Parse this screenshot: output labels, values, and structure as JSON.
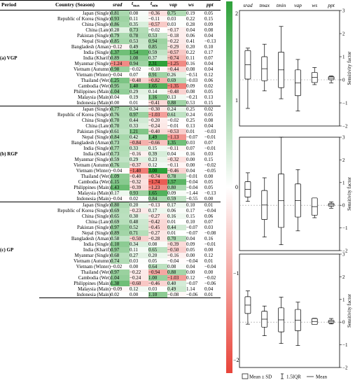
{
  "headers": {
    "period": "Period",
    "country": "Country (Season)",
    "cols": [
      {
        "main": "srad",
        "sub": ""
      },
      {
        "main": "t",
        "sub": "max"
      },
      {
        "main": "t",
        "sub": "min"
      },
      {
        "main": "vap",
        "sub": ""
      },
      {
        "main": "ws",
        "sub": ""
      },
      {
        "main": "ppt",
        "sub": ""
      }
    ]
  },
  "countries": [
    "Japan (Single)",
    "Republic of Korea (Single)",
    "China (Single)",
    "China (Late)",
    "Pakistan (Single)",
    "Nepal (Single)",
    "Bangladesh (Aman)",
    "India (Single)",
    "India (Kharif)",
    "Myanmar (Single)",
    "Vietnam (Autumn)",
    "Vietnam (Winter)",
    "Thailand (Wet)",
    "Cambodia (Wet)",
    "Philippines (Main)",
    "Malaysia (Main)",
    "Indonesia (Main)"
  ],
  "chart_data": [
    {
      "type": "heatmap",
      "columns": [
        "srad",
        "tmax",
        "tmin",
        "vap",
        "ws",
        "ppt"
      ],
      "color_scale": {
        "min": -2,
        "max": 2,
        "ticks": [
          2,
          1,
          0,
          -1,
          -2
        ],
        "low_color": "#e8443a",
        "mid_color": "#ffffff",
        "high_color": "#2ea13a"
      },
      "groups": [
        {
          "label": "(a) VGP",
          "values": [
            [
              "0.81",
              "0.08",
              "−0.36",
              "0.75",
              "0.19",
              "0.05"
            ],
            [
              "0.93",
              "0.11",
              "−0.11",
              "0.03",
              "0.22",
              "0.15"
            ],
            [
              "0.86",
              "0.35",
              "−0.57",
              "0.03",
              "0.28",
              "0.09"
            ],
            [
              "0.28",
              "0.73",
              "−0.02",
              "−0.17",
              "0.04",
              "0.08"
            ],
            [
              "0.79",
              "0.78",
              "0.53",
              "−0.18",
              "0.06",
              "0.04"
            ],
            [
              "0.85",
              "0.53",
              "0.94",
              "−0.22",
              "0.41",
              "−0.13"
            ],
            [
              "−0.12",
              "0.49",
              "0.85",
              "−0.29",
              "0.20",
              "0.10"
            ],
            [
              "1.37",
              "1.54",
              "0.59",
              "−0.57",
              "0.22",
              "0.17"
            ],
            [
              "0.89",
              "1.08",
              "0.37",
              "−0.74",
              "0.11",
              "0.07"
            ],
            [
              "−1.24",
              "0.94",
              "2.31",
              "−1.25",
              "0.16",
              "0.04"
            ],
            [
              "0.98",
              "−0.02",
              "−0.10",
              "−0.44",
              "0.08",
              "0.04"
            ],
            [
              "−0.04",
              "0.07",
              "0.91",
              "0.26",
              "−0.51",
              "0.12"
            ],
            [
              "1.25",
              "−0.48",
              "−0.82",
              "0.69",
              "−0.03",
              "0.06"
            ],
            [
              "0.95",
              "1.40",
              "1.65",
              "−1.35",
              "0.09",
              "0.02"
            ],
            [
              "1.04",
              "0.29",
              "0.14",
              "−0.48",
              "0.08",
              "0.05"
            ],
            [
              "0.04",
              "0.19",
              "1.16",
              "0.13",
              "−0.21",
              "0.13"
            ],
            [
              "0.00",
              "0.01",
              "−0.41",
              "0.88",
              "0.53",
              "0.15"
            ]
          ]
        },
        {
          "label": "(b) RGP",
          "values": [
            [
              "0.77",
              "0.34",
              "−0.30",
              "0.24",
              "0.25",
              "0.02"
            ],
            [
              "0.76",
              "0.97",
              "−1.03",
              "0.61",
              "0.24",
              "0.05"
            ],
            [
              "0.70",
              "0.44",
              "−0.20",
              "−0.02",
              "0.25",
              "0.08"
            ],
            [
              "0.70",
              "0.33",
              "−0.24",
              "−0.01",
              "0.13",
              "0.04"
            ],
            [
              "0.61",
              "1.21",
              "−0.40",
              "−0.53",
              "0.01",
              "−0.03"
            ],
            [
              "0.84",
              "0.42",
              "1.49",
              "−1.13",
              "−0.07",
              "−0.01"
            ],
            [
              "0.73",
              "−0.84",
              "−0.66",
              "1.35",
              "0.03",
              "0.07"
            ],
            [
              "0.77",
              "0.33",
              "0.15",
              "−0.11",
              "0.07",
              "−0.01"
            ],
            [
              "0.73",
              "−0.16",
              "0.39",
              "0.04",
              "0.16",
              "0.03"
            ],
            [
              "0.59",
              "0.29",
              "0.23",
              "−0.32",
              "0.00",
              "0.15"
            ],
            [
              "0.76",
              "−0.37",
              "0.12",
              "−0.11",
              "0.00",
              "−0.02"
            ],
            [
              "−0.04",
              "−1.40",
              "3.00",
              "−0.46",
              "0.04",
              "−0.05"
            ],
            [
              "1.09",
              "−0.40",
              "−0.74",
              "0.78",
              "−0.01",
              "0.00"
            ],
            [
              "1.15",
              "−0.32",
              "−1.74",
              "1.57",
              "−0.04",
              "0.05"
            ],
            [
              "1.43",
              "−0.39",
              "−1.23",
              "0.80",
              "−0.04",
              "0.05"
            ],
            [
              "0.17",
              "0.93",
              "1.65",
              "0.09",
              "−1.44",
              "−0.13"
            ],
            [
              "−0.04",
              "0.02",
              "0.84",
              "0.59",
              "−0.55",
              "0.00"
            ]
          ]
        },
        {
          "label": "(c) GP",
          "values": [
            [
              "0.80",
              "0.20",
              "−0.13",
              "0.17",
              "0.10",
              "0.01"
            ],
            [
              "0.69",
              "−0.23",
              "0.17",
              "0.06",
              "0.17",
              "−0.04"
            ],
            [
              "0.65",
              "0.30",
              "−0.27",
              "0.16",
              "0.15",
              "0.06"
            ],
            [
              "0.69",
              "0.48",
              "−0.42",
              "0.01",
              "0.10",
              "0.07"
            ],
            [
              "0.97",
              "0.52",
              "−0.45",
              "0.44",
              "−0.07",
              "0.03"
            ],
            [
              "0.89",
              "0.71",
              "−0.27",
              "0.01",
              "−0.07",
              "−0.08"
            ],
            [
              "0.58",
              "−0.50",
              "−0.28",
              "0.70",
              "0.04",
              "0.16"
            ],
            [
              "1.10",
              "0.34",
              "0.08",
              "−0.39",
              "0.09",
              "−0.01"
            ],
            [
              "0.97",
              "0.11",
              "0.65",
              "−0.50",
              "0.05",
              "0.00"
            ],
            [
              "0.68",
              "0.27",
              "0.20",
              "−0.16",
              "0.00",
              "0.12"
            ],
            [
              "0.74",
              "0.03",
              "0.05",
              "−0.04",
              "−0.04",
              "0.01"
            ],
            [
              "−0.02",
              "0.00",
              "0.64",
              "0.08",
              "0.04",
              "−0.04"
            ],
            [
              "0.97",
              "−0.22",
              "−0.94",
              "0.88",
              "0.00",
              "0.00"
            ],
            [
              "1.04",
              "−0.24",
              "1.00",
              "−1.03",
              "0.12",
              "−0.02"
            ],
            [
              "1.38",
              "−0.60",
              "−0.46",
              "0.40",
              "−0.07",
              "−0.06"
            ],
            [
              "−0.09",
              "0.12",
              "0.03",
              "0.49",
              "1.14",
              "0.04"
            ],
            [
              "0.02",
              "0.00",
              "1.10",
              "−0.08",
              "−0.06",
              "0.01"
            ]
          ]
        }
      ]
    },
    {
      "type": "boxplot",
      "categories": [
        "srad",
        "tmax",
        "tmin",
        "vap",
        "ws",
        "ppt"
      ],
      "ylabel": "Sensitivity factor",
      "ylim": [
        -2,
        3
      ],
      "yticks": [
        3,
        2,
        1,
        0,
        -1,
        -2
      ],
      "legend": [
        "Mean ± SD",
        "1.5IQR",
        "Mean"
      ],
      "panels": [
        {
          "label": "(a) VGP",
          "boxes": [
            {
              "mean": 0.65,
              "sd": 0.62,
              "whisker_low": -1.24,
              "whisker_high": 1.37
            },
            {
              "mean": 0.48,
              "sd": 0.52,
              "whisker_low": -0.48,
              "whisker_high": 1.54
            },
            {
              "mean": 0.43,
              "sd": 0.77,
              "whisker_low": -0.82,
              "whisker_high": 2.31
            },
            {
              "mean": -0.13,
              "sd": 0.56,
              "whisker_low": -1.35,
              "whisker_high": 0.88
            },
            {
              "mean": 0.1,
              "sd": 0.22,
              "whisker_low": -0.21,
              "whisker_high": 0.53
            },
            {
              "mean": 0.07,
              "sd": 0.07,
              "whisker_low": -0.13,
              "whisker_high": 0.17
            }
          ]
        },
        {
          "label": "(b) RGP",
          "boxes": [
            {
              "mean": 0.7,
              "sd": 0.34,
              "whisker_low": 0.17,
              "whisker_high": 1.43
            },
            {
              "mean": 0.01,
              "sd": 0.64,
              "whisker_low": -1.4,
              "whisker_high": 1.21
            },
            {
              "mean": 0.2,
              "sd": 1.18,
              "whisker_low": -1.74,
              "whisker_high": 3.0
            },
            {
              "mean": 0.21,
              "sd": 0.73,
              "whisker_low": -1.13,
              "whisker_high": 1.57
            },
            {
              "mean": -0.06,
              "sd": 0.38,
              "whisker_low": -0.55,
              "whisker_high": 0.25
            },
            {
              "mean": 0.02,
              "sd": 0.06,
              "whisker_low": -0.13,
              "whisker_high": 0.15
            }
          ]
        },
        {
          "label": "(c) GP",
          "boxes": [
            {
              "mean": 0.75,
              "sd": 0.37,
              "whisker_low": -0.09,
              "whisker_high": 1.38
            },
            {
              "mean": 0.13,
              "sd": 0.35,
              "whisker_low": -0.6,
              "whisker_high": 0.71
            },
            {
              "mean": 0.1,
              "sd": 0.53,
              "whisker_low": -0.94,
              "whisker_high": 1.1
            },
            {
              "mean": 0.09,
              "sd": 0.47,
              "whisker_low": -1.03,
              "whisker_high": 0.88
            },
            {
              "mean": 0.03,
              "sd": 0.13,
              "whisker_low": -0.07,
              "whisker_high": 0.17
            },
            {
              "mean": 0.02,
              "sd": 0.06,
              "whisker_low": -0.08,
              "whisker_high": 0.16
            }
          ]
        }
      ]
    }
  ]
}
